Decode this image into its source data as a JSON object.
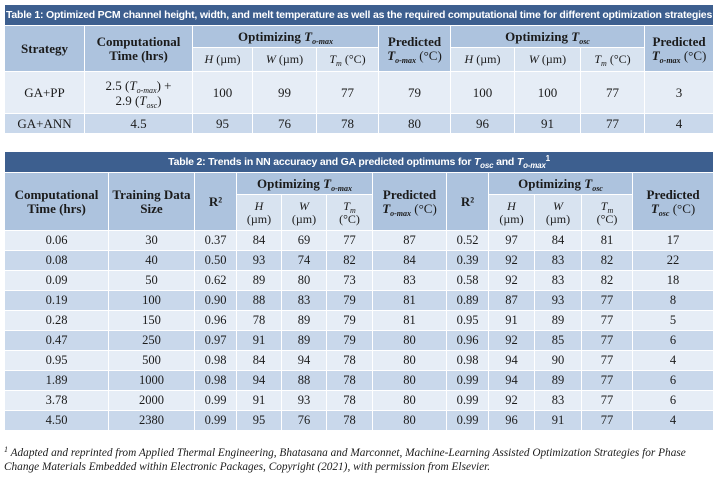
{
  "table1": {
    "caption": "Table 1: Optimized PCM channel height, width, and melt temperature as well as the required computational time for different optimization strategies",
    "headers": {
      "strategy": "Strategy",
      "comp_time": "Computational Time (hrs)",
      "opt_tomax_prefix": "Optimizing ",
      "opt_tomax_sym": "T",
      "opt_tomax_sub": "o-max",
      "pred_tomax_word": "Predicted",
      "pred_tomax_sym": "T",
      "pred_tomax_sub": "o-max",
      "pred_tomax_unit": "(°C)",
      "opt_tosc_prefix": "Optimizing ",
      "opt_tosc_sym": "T",
      "opt_tosc_sub": "osc",
      "pred_tosc_word": "Predicted",
      "pred_tosc_sym": "T",
      "pred_tosc_sub": "o-max",
      "pred_tosc_unit": "(°C)"
    },
    "subheaders": {
      "h_sym": "H",
      "h_unit": "(µm)",
      "w_sym": "W",
      "w_unit": "(µm)",
      "tm_sym": "T",
      "tm_sub": "m",
      "tm_unit": "(°C)"
    },
    "rows": [
      {
        "strategy": "GA+PP",
        "comp_a": "2.5 (",
        "comp_a_sym": "T",
        "comp_a_sub": "o-max",
        "comp_a_end": ") +",
        "comp_b": "2.9 (",
        "comp_b_sym": "T",
        "comp_b_sub": "osc",
        "comp_b_end": ")",
        "h1": "100",
        "w1": "99",
        "tm1": "77",
        "pred1": "79",
        "h2": "100",
        "w2": "100",
        "tm2": "77",
        "pred2": "3"
      },
      {
        "strategy": "GA+ANN",
        "comp": "4.5",
        "h1": "95",
        "w1": "76",
        "tm1": "78",
        "pred1": "80",
        "h2": "96",
        "w2": "91",
        "tm2": "77",
        "pred2": "4"
      }
    ]
  },
  "table2": {
    "caption_prefix": "Table 2: Trends in NN accuracy and GA predicted optimums for ",
    "caption_sym1": "T",
    "caption_sub1": "osc",
    "caption_and": " and ",
    "caption_sym2": "T",
    "caption_sub2": "o-max",
    "caption_sup": "1",
    "headers": {
      "comp_time": "Computational Time (hrs)",
      "training": "Training Data Size",
      "r2a": "R²",
      "opt_tomax_prefix": "Optimizing ",
      "opt_tomax_sym": "T",
      "opt_tomax_sub": "o-max",
      "pred_tomax_word": "Predicted",
      "pred_tomax_sym": "T",
      "pred_tomax_sub": "o-max",
      "pred_tomax_unit": "(°C)",
      "r2b": "R²",
      "opt_tosc_prefix": "Optimizing ",
      "opt_tosc_sym": "T",
      "opt_tosc_sub": "osc",
      "pred_tosc_word": "Predicted",
      "pred_tosc_sym": "T",
      "pred_tosc_sub": "osc",
      "pred_tosc_unit": "(°C)"
    },
    "subheaders": {
      "h_sym": "H",
      "h_unit": "(µm)",
      "w_sym": "W",
      "w_unit": "(µm)",
      "tm_sym": "T",
      "tm_sub": "m",
      "tm_unit": "(°C)"
    },
    "rows": [
      [
        "0.06",
        "30",
        "0.37",
        "84",
        "69",
        "77",
        "87",
        "0.52",
        "97",
        "84",
        "81",
        "17"
      ],
      [
        "0.08",
        "40",
        "0.50",
        "93",
        "74",
        "82",
        "84",
        "0.39",
        "92",
        "83",
        "82",
        "22"
      ],
      [
        "0.09",
        "50",
        "0.62",
        "89",
        "80",
        "73",
        "83",
        "0.58",
        "92",
        "83",
        "82",
        "18"
      ],
      [
        "0.19",
        "100",
        "0.90",
        "88",
        "83",
        "79",
        "81",
        "0.89",
        "87",
        "93",
        "77",
        "8"
      ],
      [
        "0.28",
        "150",
        "0.96",
        "78",
        "89",
        "79",
        "81",
        "0.95",
        "91",
        "89",
        "77",
        "5"
      ],
      [
        "0.47",
        "250",
        "0.97",
        "91",
        "89",
        "79",
        "80",
        "0.96",
        "92",
        "85",
        "77",
        "6"
      ],
      [
        "0.95",
        "500",
        "0.98",
        "84",
        "94",
        "78",
        "80",
        "0.98",
        "94",
        "90",
        "77",
        "4"
      ],
      [
        "1.89",
        "1000",
        "0.98",
        "94",
        "88",
        "78",
        "80",
        "0.99",
        "94",
        "89",
        "77",
        "6"
      ],
      [
        "3.78",
        "2000",
        "0.99",
        "91",
        "93",
        "78",
        "80",
        "0.99",
        "92",
        "83",
        "77",
        "6"
      ],
      [
        "4.50",
        "2380",
        "0.99",
        "95",
        "76",
        "78",
        "80",
        "0.99",
        "96",
        "91",
        "77",
        "4"
      ]
    ]
  },
  "footnote": {
    "sup": "1",
    "text": " Adapted and reprinted from Applied Thermal Engineering, Bhatasana and Marconnet, Machine-Learning Assisted Optimization Strategies for Phase Change Materials Embedded within Electronic Packages, Copyright (2021), with permission from Elsevier."
  },
  "colors": {
    "caption_bg": "#3d5f8f",
    "header_bg": "#adc3de",
    "subheader_bg": "#d8e3f0",
    "row_dark": "#c9d8eb",
    "row_light": "#e6edf6"
  }
}
